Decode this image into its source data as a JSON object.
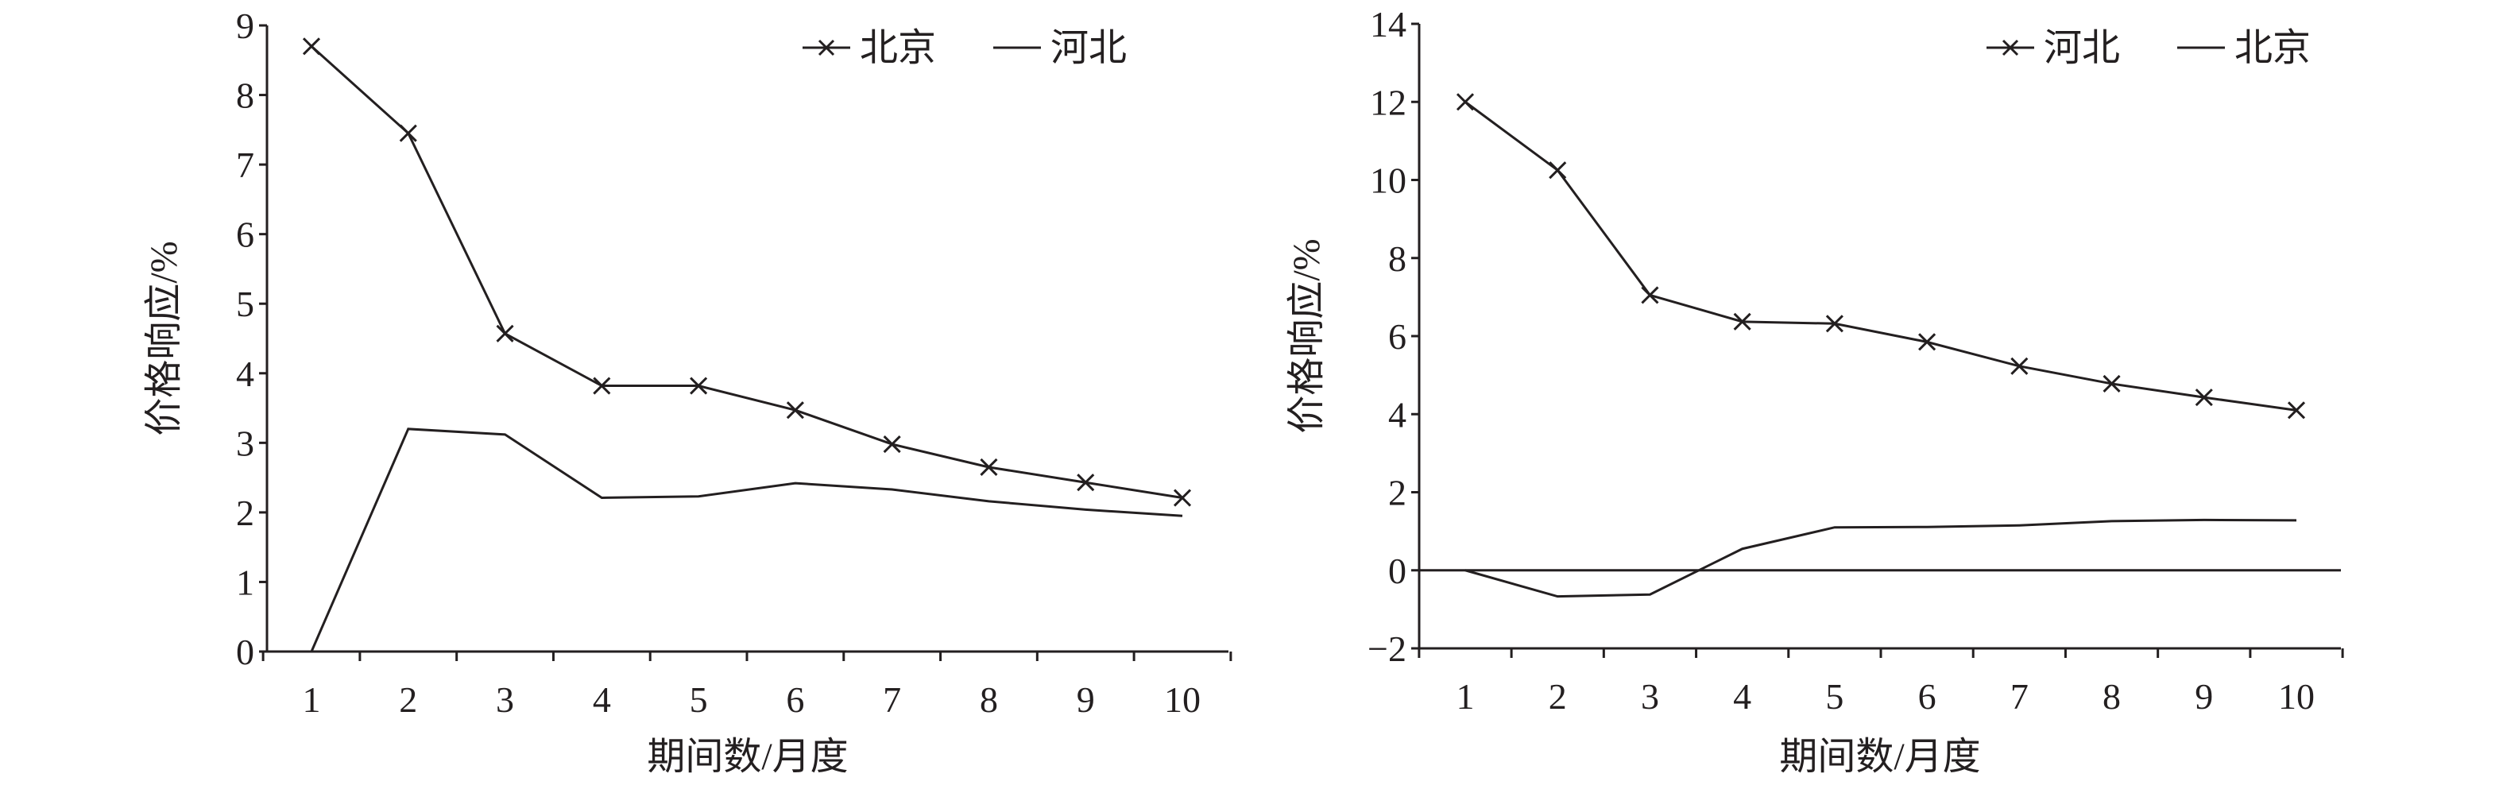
{
  "chart_data": [
    {
      "type": "line",
      "title": "",
      "xlabel": "期间数/月度",
      "ylabel": "价格响应/%",
      "x": [
        1,
        2,
        3,
        4,
        5,
        6,
        7,
        8,
        9,
        10
      ],
      "ylim": [
        0,
        9
      ],
      "yticks": [
        0,
        1,
        2,
        3,
        4,
        5,
        6,
        7,
        8,
        9
      ],
      "grid": false,
      "legend_position": "top-right",
      "series": [
        {
          "name": "北京",
          "marker": "x",
          "values": [
            8.7,
            7.45,
            4.57,
            3.82,
            3.82,
            3.47,
            2.98,
            2.65,
            2.43,
            2.21
          ]
        },
        {
          "name": "河北",
          "marker": "none",
          "values": [
            0,
            3.2,
            3.12,
            2.21,
            2.23,
            2.42,
            2.33,
            2.16,
            2.04,
            1.95
          ]
        }
      ]
    },
    {
      "type": "line",
      "title": "",
      "xlabel": "期间数/月度",
      "ylabel": "价格响应/%",
      "x": [
        1,
        2,
        3,
        4,
        5,
        6,
        7,
        8,
        9,
        10
      ],
      "ylim": [
        -2,
        14
      ],
      "yticks": [
        -2,
        0,
        2,
        4,
        6,
        8,
        10,
        12,
        14
      ],
      "grid": false,
      "zero_line": true,
      "legend_position": "top-right",
      "series": [
        {
          "name": "河北",
          "marker": "x",
          "values": [
            12.0,
            10.25,
            7.05,
            6.37,
            6.32,
            5.85,
            5.23,
            4.78,
            4.43,
            4.1
          ]
        },
        {
          "name": "北京",
          "marker": "none",
          "values": [
            0,
            -0.67,
            -0.62,
            0.55,
            1.1,
            1.11,
            1.15,
            1.26,
            1.29,
            1.28
          ]
        }
      ]
    }
  ]
}
